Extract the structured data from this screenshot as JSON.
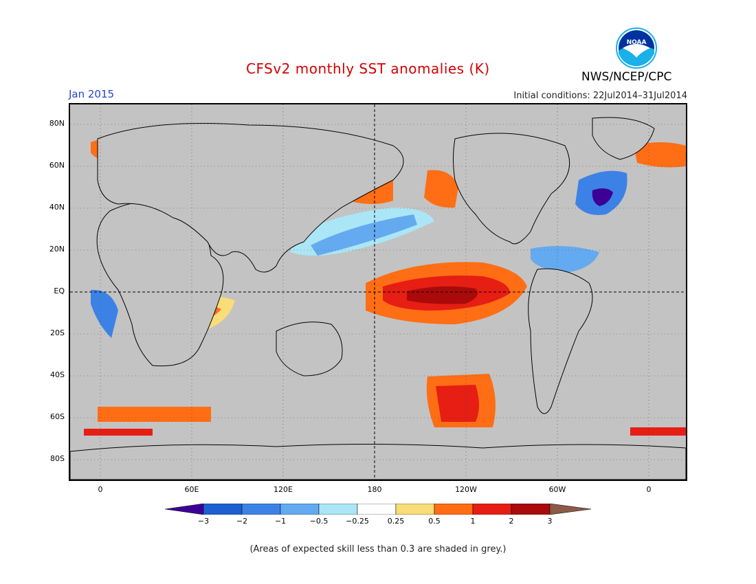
{
  "header": {
    "title": "CFSv2 monthly SST anomalies (K)",
    "month": "Jan 2015",
    "initial_conditions": "Initial conditions: 22Jul2014–31Jul2014",
    "agency": "NWS/NCEP/CPC",
    "logo_text": "NOAA"
  },
  "map": {
    "lat_ticks": [
      "80N",
      "60N",
      "40N",
      "20N",
      "EQ",
      "20S",
      "40S",
      "60S",
      "80S"
    ],
    "lon_ticks": [
      "0",
      "60E",
      "120E",
      "180",
      "120W",
      "60W",
      "0"
    ],
    "masked_color": "#c3c3c3",
    "land_color": "#ffffff"
  },
  "colorbar": {
    "labels": [
      "−3",
      "−2",
      "−1",
      "−0.5",
      "−0.25",
      "0.25",
      "0.5",
      "1",
      "2",
      "3"
    ],
    "colors": [
      "#3c0096",
      "#1e5fd2",
      "#3c82e6",
      "#64aaf0",
      "#aae6f5",
      "#ffffff",
      "#fadc78",
      "#ff6e14",
      "#e61e14",
      "#aa0a0a",
      "#8c5a46"
    ],
    "units": "K"
  },
  "footnote": "(Areas of expected skill less than 0.3 are shaded in grey.)"
}
